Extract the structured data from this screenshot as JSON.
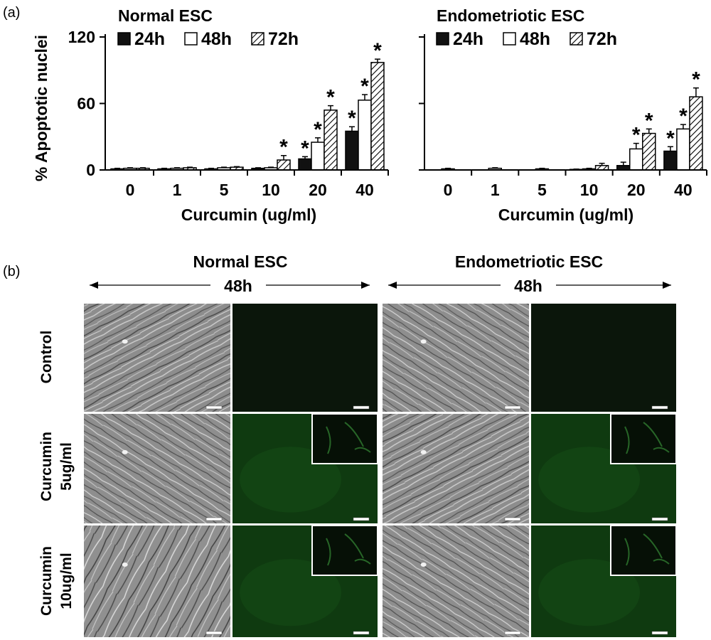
{
  "figure": {
    "panel_a_label": "(a)",
    "panel_b_label": "(b)"
  },
  "legend_entries": [
    {
      "name": "24h",
      "fill": "#111111",
      "pattern": "solid"
    },
    {
      "name": "48h",
      "fill": "#ffffff",
      "pattern": "empty"
    },
    {
      "name": "72h",
      "fill": "#ffffff",
      "pattern": "hatch"
    }
  ],
  "chart_data": [
    {
      "type": "bar",
      "title": "Normal ESC",
      "ylabel": "% Apoptotic nuclei",
      "xlabel": "Curcumin (ug/ml)",
      "categories": [
        "0",
        "1",
        "5",
        "10",
        "20",
        "40"
      ],
      "ylim": [
        0,
        120
      ],
      "yticks": [
        "0",
        "60",
        "120"
      ],
      "legend_position": "top-left",
      "grid": false,
      "series": [
        {
          "name": "24h",
          "values": [
            1,
            1,
            1,
            1.5,
            10,
            35
          ],
          "errors": [
            0.5,
            0.5,
            0.5,
            0.5,
            2,
            4
          ],
          "significant": [
            false,
            false,
            false,
            false,
            true,
            true
          ]
        },
        {
          "name": "48h",
          "values": [
            1.5,
            1.5,
            2,
            2,
            25,
            63
          ],
          "errors": [
            0.5,
            0.5,
            0.5,
            0.5,
            4,
            5
          ],
          "significant": [
            false,
            false,
            false,
            false,
            true,
            true
          ]
        },
        {
          "name": "72h",
          "values": [
            1.5,
            2,
            2.5,
            9,
            54,
            97
          ],
          "errors": [
            0.5,
            0.5,
            0.5,
            4,
            4,
            3
          ],
          "significant": [
            false,
            false,
            false,
            true,
            true,
            true
          ]
        }
      ]
    },
    {
      "type": "bar",
      "title": "Endometriotic ESC",
      "ylabel": "",
      "xlabel": "Curcumin (ug/ml)",
      "categories": [
        "0",
        "1",
        "5",
        "10",
        "20",
        "40"
      ],
      "ylim": [
        0,
        120
      ],
      "yticks": [
        "",
        "",
        ""
      ],
      "legend_position": "top-left",
      "grid": false,
      "series": [
        {
          "name": "24h",
          "values": [
            0,
            0,
            0,
            0.5,
            4,
            17
          ],
          "errors": [
            0,
            0,
            0,
            0.3,
            3,
            4
          ],
          "significant": [
            false,
            false,
            false,
            false,
            false,
            true
          ]
        },
        {
          "name": "48h",
          "values": [
            1,
            1.5,
            1,
            1,
            19,
            37
          ],
          "errors": [
            0.5,
            0.5,
            0.5,
            0.5,
            5,
            4
          ],
          "significant": [
            false,
            false,
            false,
            false,
            true,
            true
          ]
        },
        {
          "name": "72h",
          "values": [
            0,
            0,
            0,
            4,
            33,
            66
          ],
          "errors": [
            0,
            0,
            0,
            2,
            4,
            8
          ],
          "significant": [
            false,
            false,
            false,
            false,
            true,
            true
          ]
        }
      ]
    }
  ],
  "significance_mark": "*",
  "micrographs": {
    "group_titles": [
      "Normal ESC",
      "Endometriotic ESC"
    ],
    "time_labels": [
      "48h",
      "48h"
    ],
    "row_labels": [
      {
        "line1": "Control",
        "line2": ""
      },
      {
        "line1": "Curcumin",
        "line2": "5ug/ml"
      },
      {
        "line1": "Curcumin",
        "line2": "10ug/ml"
      }
    ],
    "columns": [
      {
        "kind": "phase-contrast",
        "group": "Normal ESC"
      },
      {
        "kind": "fluorescence",
        "group": "Normal ESC"
      },
      {
        "kind": "phase-contrast",
        "group": "Endometriotic ESC"
      },
      {
        "kind": "fluorescence",
        "group": "Endometriotic ESC"
      }
    ],
    "colors": {
      "phase_base": "#8a8a8a",
      "control_fluorescence": "#0b160b",
      "curcumin_fluorescence": "#0f3a10",
      "inset_bg": "#061006",
      "inset_signal": "#2f7a2f"
    }
  }
}
